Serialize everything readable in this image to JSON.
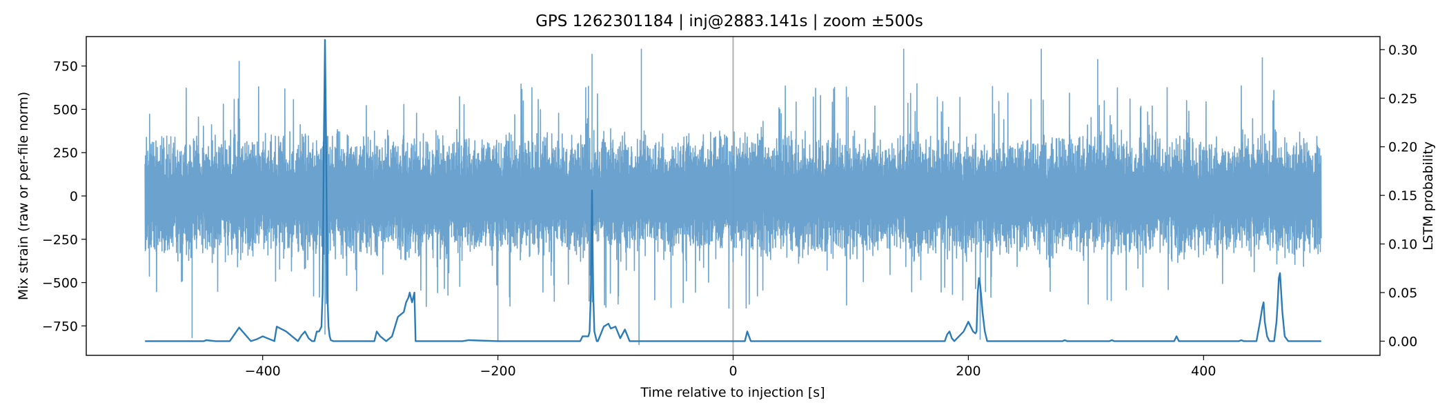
{
  "chart_data": {
    "type": "line",
    "title": "GPS 1262301184 | inj@2883.141s | zoom ±500s",
    "xlabel": "Time relative to injection [s]",
    "ylabel_left": "Mix strain (raw or per-file norm)",
    "ylabel_right": "LSTM probability",
    "xlim": [
      -550,
      550
    ],
    "ylim_left": [
      -920,
      920
    ],
    "ylim_right": [
      -0.0146,
      0.3134
    ],
    "x_ticks": [
      -400,
      -200,
      0,
      200,
      400
    ],
    "x_tick_labels": [
      "−400",
      "−200",
      "0",
      "200",
      "400"
    ],
    "y_left_ticks": [
      -750,
      -500,
      -250,
      0,
      250,
      500,
      750
    ],
    "y_left_tick_labels": [
      "−750",
      "−500",
      "−250",
      "0",
      "250",
      "500",
      "750"
    ],
    "y_right_ticks": [
      0.0,
      0.05,
      0.1,
      0.15,
      0.2,
      0.25,
      0.3
    ],
    "y_right_tick_labels": [
      "0.00",
      "0.05",
      "0.10",
      "0.15",
      "0.20",
      "0.25",
      "0.30"
    ],
    "grid": false,
    "injection_marker_x": 0,
    "colors": {
      "strain": "#639ecb",
      "probability": "#2b7bb6",
      "marker": "#b0b0b0"
    },
    "series": [
      {
        "axis": "left",
        "x_range": [
          -500,
          500
        ],
        "typical_envelope": [
          -400,
          400
        ],
        "peaks": [
          {
            "x": -347,
            "y": 845
          },
          {
            "x": -347,
            "y": -800
          },
          {
            "x": -420,
            "y": 780
          },
          {
            "x": -120,
            "y": 820
          },
          {
            "x": -78,
            "y": 850
          },
          {
            "x": 145,
            "y": 850
          },
          {
            "x": 262,
            "y": 850
          },
          {
            "x": 310,
            "y": 790
          },
          {
            "x": 450,
            "y": 800
          },
          {
            "x": -460,
            "y": -820
          },
          {
            "x": -200,
            "y": -835
          },
          {
            "x": -80,
            "y": -860
          },
          {
            "x": 210,
            "y": -830
          }
        ]
      },
      {
        "axis": "right",
        "x": [
          -500,
          -450,
          -448,
          -440,
          -428,
          -420,
          -410,
          -405,
          -400,
          -398,
          -390,
          -388,
          -380,
          -370,
          -367,
          -364,
          -361,
          -358,
          -356,
          -354,
          -352,
          -350,
          -349,
          -348,
          -347,
          -346,
          -345,
          -344,
          -343,
          -342,
          -340,
          -320,
          -305,
          -303,
          -300,
          -295,
          -290,
          -285,
          -280,
          -278,
          -276,
          -275,
          -274,
          -273,
          -272,
          -271,
          -270,
          -260,
          -240,
          -230,
          -225,
          -200,
          -180,
          -130,
          -128,
          -123,
          -122,
          -121,
          -120,
          -119,
          -118,
          -117,
          -116,
          -115,
          -110,
          -106,
          -104,
          -100,
          -96,
          -92,
          -88,
          -85,
          -80,
          -60,
          -30,
          0,
          10,
          12,
          15,
          20,
          60,
          100,
          150,
          180,
          182,
          184,
          186,
          188,
          192,
          196,
          198,
          200,
          202,
          204,
          206,
          207,
          208,
          209,
          210,
          211,
          212,
          214,
          216,
          220,
          250,
          280,
          282,
          284,
          300,
          320,
          322,
          324,
          340,
          375,
          377,
          379,
          400,
          430,
          432,
          434,
          445,
          448,
          450,
          451,
          452,
          454,
          456,
          460,
          462,
          463,
          464,
          465,
          467,
          469,
          472,
          475,
          500
        ],
        "y": [
          0.0,
          0.0,
          0.001,
          0.0,
          0.0,
          0.014,
          0.0,
          0.002,
          0.005,
          0.004,
          0.0,
          0.015,
          0.01,
          0.0,
          0.006,
          0.01,
          0.003,
          0.0,
          0.0,
          0.01,
          0.01,
          0.015,
          0.05,
          0.2,
          0.31,
          0.2,
          0.05,
          0.015,
          0.005,
          0.001,
          0.0,
          0.0,
          0.0,
          0.01,
          0.005,
          0.0,
          0.005,
          0.025,
          0.03,
          0.04,
          0.045,
          0.05,
          0.045,
          0.04,
          0.045,
          0.05,
          0.0,
          0.0,
          0.0,
          0.0,
          0.001,
          0.0,
          0.0,
          0.0,
          0.005,
          0.005,
          0.01,
          0.05,
          0.155,
          0.05,
          0.01,
          0.005,
          0.0,
          0.0,
          0.015,
          0.018,
          0.013,
          0.015,
          0.003,
          0.012,
          0.0,
          0.0,
          0.0,
          0.0,
          0.0,
          0.0,
          0.0,
          0.01,
          0.0,
          0.0,
          0.0,
          0.0,
          0.0,
          0.0,
          0.007,
          0.01,
          0.003,
          0.0,
          0.005,
          0.01,
          0.015,
          0.02,
          0.015,
          0.01,
          0.008,
          0.01,
          0.05,
          0.065,
          0.058,
          0.045,
          0.03,
          0.01,
          0.0,
          0.0,
          0.0,
          0.0,
          0.001,
          0.0,
          0.0,
          0.0,
          0.001,
          0.0,
          0.0,
          0.0,
          0.005,
          0.0,
          0.0,
          0.0,
          0.001,
          0.0,
          0.0,
          0.02,
          0.035,
          0.04,
          0.02,
          0.005,
          0.0,
          0.0,
          0.02,
          0.04,
          0.065,
          0.07,
          0.03,
          0.005,
          0.0,
          0.0,
          0.0
        ]
      }
    ]
  }
}
